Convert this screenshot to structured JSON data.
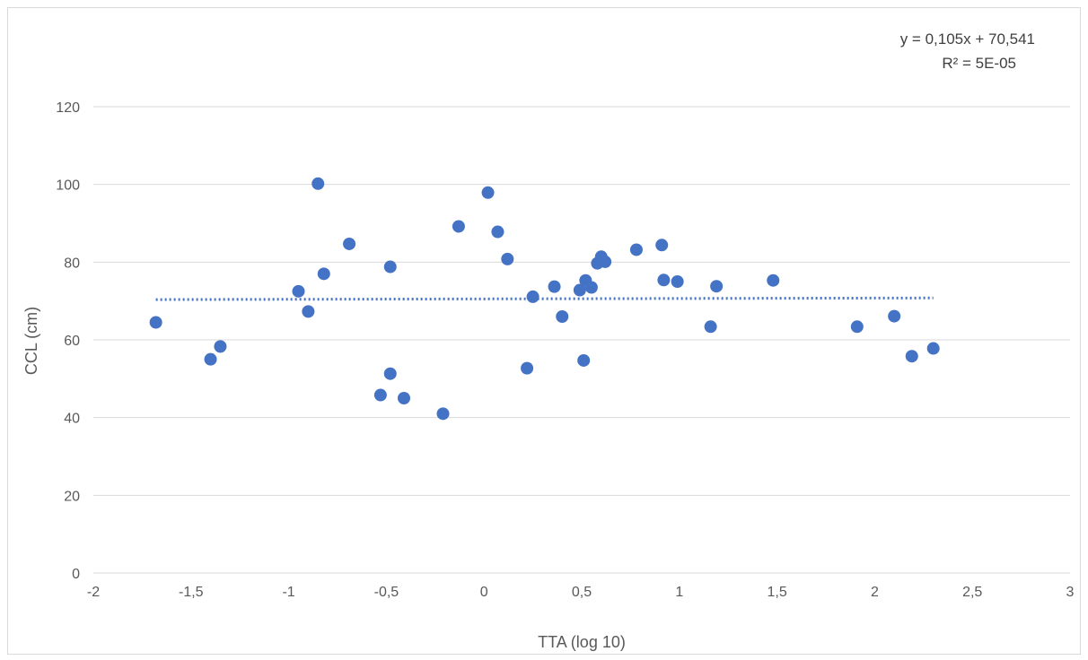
{
  "chart_data": {
    "type": "scatter",
    "xlabel": "TTA (log 10)",
    "ylabel": "CCL (cm)",
    "xlim": [
      -2,
      3
    ],
    "ylim": [
      0,
      120
    ],
    "x_ticks": [
      "-2",
      "-1,5",
      "-1",
      "-0,5",
      "0",
      "0,5",
      "1",
      "1,5",
      "2",
      "2,5",
      "3"
    ],
    "y_ticks": [
      "0",
      "20",
      "40",
      "60",
      "80",
      "100",
      "120"
    ],
    "y_tick_values": [
      0,
      20,
      40,
      60,
      80,
      100,
      120
    ],
    "x_tick_values": [
      -2,
      -1.5,
      -1,
      -0.5,
      0,
      0.5,
      1,
      1.5,
      2,
      2.5,
      3
    ],
    "grid": "horizontal",
    "marker_color": "#4472c4",
    "trendline": {
      "type": "linear",
      "slope": 0.105,
      "intercept": 70.541,
      "x_range": [
        -1.68,
        2.3
      ],
      "style": "dotted",
      "color": "#4472c4",
      "equation_label": "y = 0,105x + 70,541",
      "r2_label": "R² = 5E-05"
    },
    "points": [
      {
        "x": -1.68,
        "y": 64.5
      },
      {
        "x": -1.4,
        "y": 55.0
      },
      {
        "x": -1.35,
        "y": 58.3
      },
      {
        "x": -0.95,
        "y": 72.5
      },
      {
        "x": -0.9,
        "y": 67.3
      },
      {
        "x": -0.85,
        "y": 100.2
      },
      {
        "x": -0.82,
        "y": 77.0
      },
      {
        "x": -0.69,
        "y": 84.7
      },
      {
        "x": -0.53,
        "y": 45.8
      },
      {
        "x": -0.48,
        "y": 51.3
      },
      {
        "x": -0.48,
        "y": 78.8
      },
      {
        "x": -0.41,
        "y": 45.0
      },
      {
        "x": -0.21,
        "y": 41.0
      },
      {
        "x": -0.13,
        "y": 89.2
      },
      {
        "x": 0.02,
        "y": 97.9
      },
      {
        "x": 0.07,
        "y": 87.8
      },
      {
        "x": 0.12,
        "y": 80.8
      },
      {
        "x": 0.22,
        "y": 52.7
      },
      {
        "x": 0.25,
        "y": 71.1
      },
      {
        "x": 0.36,
        "y": 73.7
      },
      {
        "x": 0.4,
        "y": 66.0
      },
      {
        "x": 0.49,
        "y": 72.8
      },
      {
        "x": 0.51,
        "y": 54.7
      },
      {
        "x": 0.52,
        "y": 75.3
      },
      {
        "x": 0.55,
        "y": 73.5
      },
      {
        "x": 0.58,
        "y": 79.7
      },
      {
        "x": 0.6,
        "y": 81.4
      },
      {
        "x": 0.62,
        "y": 80.1
      },
      {
        "x": 0.78,
        "y": 83.2
      },
      {
        "x": 0.91,
        "y": 84.4
      },
      {
        "x": 0.92,
        "y": 75.4
      },
      {
        "x": 0.99,
        "y": 75.0
      },
      {
        "x": 1.16,
        "y": 63.4
      },
      {
        "x": 1.19,
        "y": 73.8
      },
      {
        "x": 1.48,
        "y": 75.3
      },
      {
        "x": 1.91,
        "y": 63.4
      },
      {
        "x": 2.1,
        "y": 66.1
      },
      {
        "x": 2.19,
        "y": 55.8
      },
      {
        "x": 2.3,
        "y": 57.8
      }
    ]
  }
}
